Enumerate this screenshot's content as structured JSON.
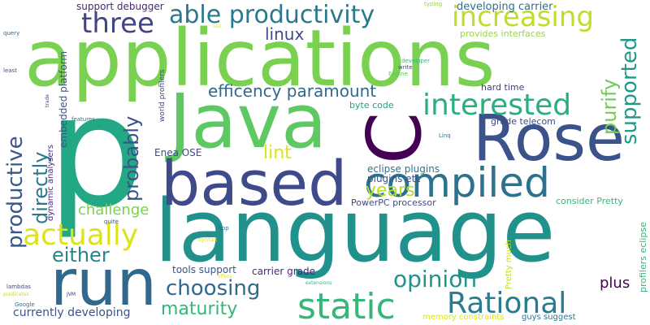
{
  "words": [
    {
      "text": "language",
      "color": "#21918c"
    },
    {
      "text": "applications",
      "color": "#7ad151"
    },
    {
      "text": "p",
      "color": "#22a884"
    },
    {
      "text": "Java",
      "color": "#5ec962"
    },
    {
      "text": "Rose",
      "color": "#3b528b"
    },
    {
      "text": "C",
      "color": "#440154"
    },
    {
      "text": "based",
      "color": "#3e4a89"
    },
    {
      "text": "run",
      "color": "#31688e"
    },
    {
      "text": "compiled",
      "color": "#2c728e"
    },
    {
      "text": "static",
      "color": "#35b779"
    },
    {
      "text": "Rational",
      "color": "#287c8e"
    },
    {
      "text": "interested",
      "color": "#29af7f"
    },
    {
      "text": "increasing",
      "color": "#bddf26"
    },
    {
      "text": "able productivity",
      "color": "#2a788e"
    },
    {
      "text": "three",
      "color": "#414487"
    },
    {
      "text": "actually",
      "color": "#dde318"
    },
    {
      "text": "productive",
      "color": "#38588c"
    },
    {
      "text": "supported",
      "color": "#1f9a8a"
    },
    {
      "text": "opinion",
      "color": "#1f948c"
    },
    {
      "text": "choosing",
      "color": "#31688e"
    },
    {
      "text": "maturity",
      "color": "#35b779"
    },
    {
      "text": "either",
      "color": "#25858e"
    },
    {
      "text": "probably",
      "color": "#3b528b"
    },
    {
      "text": "directly",
      "color": "#2a788e"
    },
    {
      "text": "purify",
      "color": "#6ece58"
    },
    {
      "text": "efficency paramount",
      "color": "#31688e"
    },
    {
      "text": "years",
      "color": "#b5de2b"
    },
    {
      "text": "lint",
      "color": "#dde318"
    },
    {
      "text": "challenge",
      "color": "#7ad151"
    },
    {
      "text": "linux",
      "color": "#3e4a89"
    },
    {
      "text": "plus",
      "color": "#440154"
    },
    {
      "text": "currently developing",
      "color": "#3b528b"
    },
    {
      "text": "embedded platform",
      "color": "#3b528b"
    },
    {
      "text": "support debugger",
      "color": "#482878"
    },
    {
      "text": "developing carrier",
      "color": "#2c728e"
    },
    {
      "text": "provides interfaces",
      "color": "#95d840"
    },
    {
      "text": "Enea OSE",
      "color": "#3e4a89"
    },
    {
      "text": "eclipse plugins",
      "color": "#2c728e"
    },
    {
      "text": "plugins etc",
      "color": "#3b528b"
    },
    {
      "text": "PowerPC processor",
      "color": "#3e4a89"
    },
    {
      "text": "byte code",
      "color": "#20a386"
    },
    {
      "text": "grade telecom",
      "color": "#3e4a89"
    },
    {
      "text": "hard time",
      "color": "#443a83"
    },
    {
      "text": "tools support",
      "color": "#3b528b"
    },
    {
      "text": "carrier grade",
      "color": "#482878"
    },
    {
      "text": "world profilers",
      "color": "#3e4a89"
    },
    {
      "text": "dynamic analysers",
      "color": "#482878"
    },
    {
      "text": "consider Pretty",
      "color": "#35b779"
    },
    {
      "text": "Pretty much",
      "color": "#c2df23"
    },
    {
      "text": "profilers eclipse",
      "color": "#35b779"
    },
    {
      "text": "memory constraints",
      "color": "#dde318"
    },
    {
      "text": "guys suggest",
      "color": "#2a788e"
    },
    {
      "text": "typing",
      "color": "#90d743"
    },
    {
      "text": "query",
      "color": "#31688e"
    },
    {
      "text": "least",
      "color": "#3b528b"
    },
    {
      "text": "use",
      "color": "#dde318"
    },
    {
      "text": "developer",
      "color": "#35b779"
    },
    {
      "text": "write",
      "color": "#3e4a89"
    },
    {
      "text": "Engine",
      "color": "#5ec962"
    },
    {
      "text": "trade",
      "color": "#3e4a89"
    },
    {
      "text": "features",
      "color": "#2c728e"
    },
    {
      "text": "Linq",
      "color": "#2a788e"
    },
    {
      "text": "quite",
      "color": "#3b528b"
    },
    {
      "text": "syntax",
      "color": "#dde318"
    },
    {
      "text": "App",
      "color": "#2c728e"
    },
    {
      "text": "offers",
      "color": "#dde318"
    },
    {
      "text": "extensions",
      "color": "#35b779"
    },
    {
      "text": "lambdas",
      "color": "#3e4a89"
    },
    {
      "text": "predicates",
      "color": "#c2df23"
    },
    {
      "text": "JVM",
      "color": "#482878"
    },
    {
      "text": "Google",
      "color": "#2c728e"
    }
  ]
}
